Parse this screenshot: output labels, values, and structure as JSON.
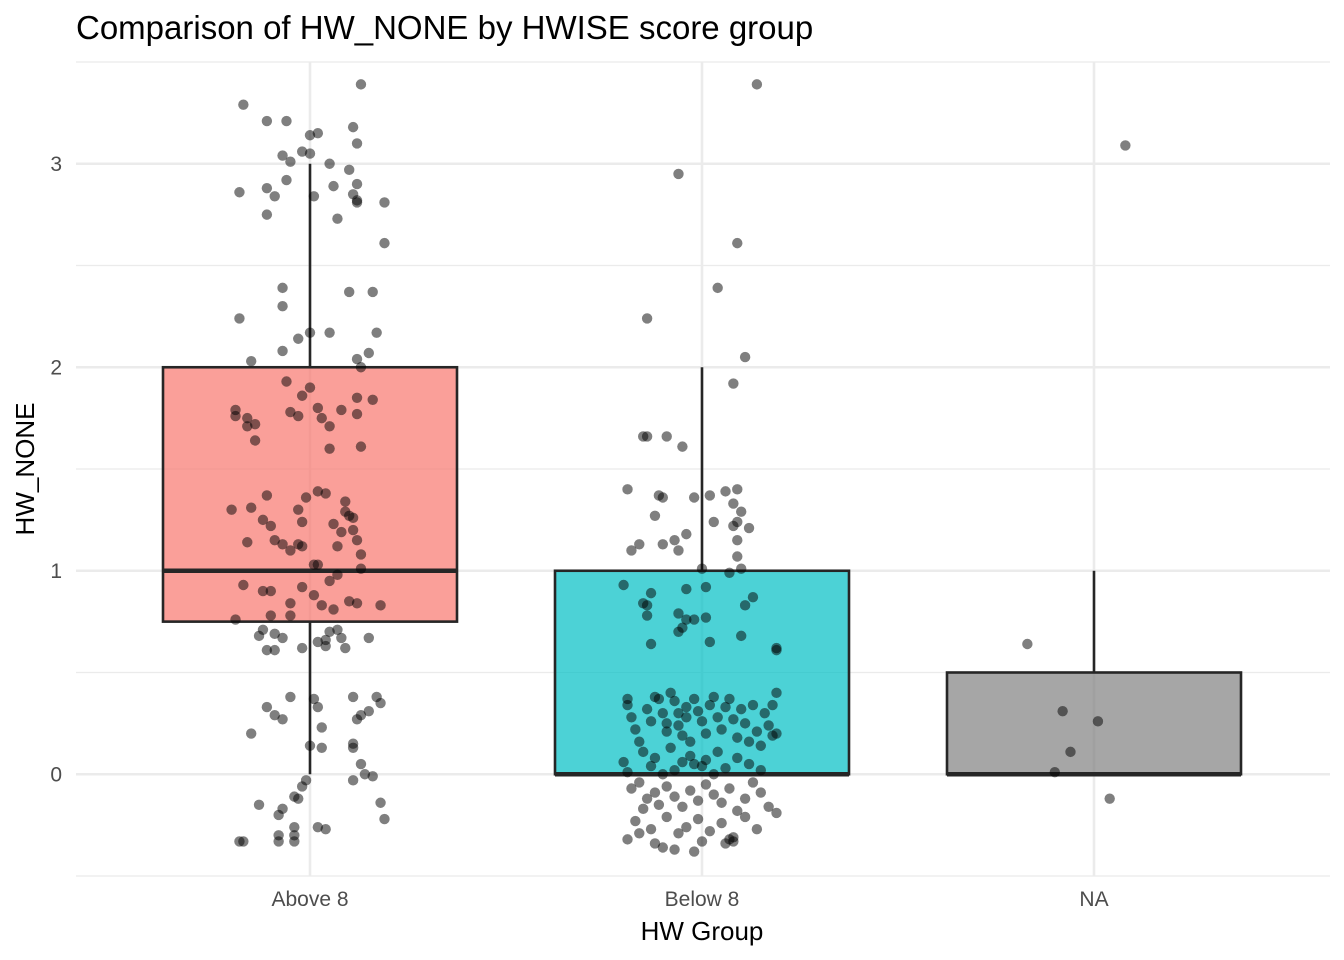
{
  "chart_data": {
    "type": "boxplot",
    "title": "Comparison of HW_NONE by HWISE score group",
    "xlabel": "HW Group",
    "ylabel": "HW_NONE",
    "ylim": [
      -0.5,
      3.5
    ],
    "yticks": [
      0,
      1,
      2,
      3
    ],
    "grid": true,
    "legend": "none",
    "categories": [
      "Above 8",
      "Below 8",
      "NA"
    ],
    "boxes": [
      {
        "category": "Above 8",
        "q1": 0.75,
        "median": 1,
        "q3": 2,
        "whisker_low": 0,
        "whisker_high": 3,
        "color": "#F8766D"
      },
      {
        "category": "Below 8",
        "q1": 0,
        "median": 0,
        "q3": 1,
        "whisker_low": 0,
        "whisker_high": 2,
        "color": "#00BFC4"
      },
      {
        "category": "NA",
        "q1": 0,
        "median": 0,
        "q3": 0.5,
        "whisker_low": 0,
        "whisker_high": 1,
        "color": "#808080"
      }
    ],
    "points": [
      [
        [
          -0.17,
          3.29
        ],
        [
          -0.11,
          3.21
        ],
        [
          -0.06,
          3.21
        ],
        [
          0.02,
          3.15
        ],
        [
          0.13,
          3.39
        ],
        [
          0.11,
          3.18
        ],
        [
          0.0,
          3.14
        ],
        [
          -0.07,
          3.04
        ],
        [
          -0.05,
          3.01
        ],
        [
          0.0,
          3.05
        ],
        [
          0.05,
          3.0
        ],
        [
          0.1,
          2.97
        ],
        [
          0.12,
          3.1
        ],
        [
          -0.18,
          2.86
        ],
        [
          -0.11,
          2.88
        ],
        [
          -0.06,
          2.92
        ],
        [
          -0.02,
          3.06
        ],
        [
          0.06,
          2.89
        ],
        [
          0.12,
          2.9
        ],
        [
          0.11,
          2.85
        ],
        [
          0.12,
          2.82
        ],
        [
          0.19,
          2.81
        ],
        [
          -0.09,
          2.84
        ],
        [
          -0.11,
          2.75
        ],
        [
          0.01,
          2.84
        ],
        [
          0.07,
          2.73
        ],
        [
          0.12,
          2.81
        ],
        [
          0.19,
          2.61
        ],
        [
          -0.07,
          2.39
        ],
        [
          -0.07,
          2.3
        ],
        [
          0.1,
          2.37
        ],
        [
          0.16,
          2.37
        ],
        [
          -0.18,
          2.24
        ],
        [
          0.0,
          2.17
        ],
        [
          0.05,
          2.17
        ],
        [
          -0.03,
          2.14
        ],
        [
          0.17,
          2.17
        ],
        [
          0.15,
          2.07
        ],
        [
          0.13,
          2.0
        ],
        [
          -0.15,
          2.03
        ],
        [
          -0.07,
          2.08
        ],
        [
          0.12,
          2.04
        ],
        [
          -0.06,
          1.93
        ],
        [
          0.0,
          1.9
        ],
        [
          -0.02,
          1.86
        ],
        [
          0.12,
          1.85
        ],
        [
          0.16,
          1.84
        ],
        [
          -0.19,
          1.79
        ],
        [
          -0.19,
          1.76
        ],
        [
          -0.16,
          1.75
        ],
        [
          -0.16,
          1.71
        ],
        [
          -0.14,
          1.72
        ],
        [
          -0.05,
          1.78
        ],
        [
          -0.03,
          1.76
        ],
        [
          0.02,
          1.8
        ],
        [
          0.03,
          1.75
        ],
        [
          0.05,
          1.71
        ],
        [
          0.08,
          1.79
        ],
        [
          0.12,
          1.77
        ],
        [
          -0.14,
          1.64
        ],
        [
          0.05,
          1.6
        ],
        [
          0.13,
          1.61
        ],
        [
          -0.2,
          1.3
        ],
        [
          -0.15,
          1.31
        ],
        [
          -0.11,
          1.37
        ],
        [
          -0.12,
          1.25
        ],
        [
          -0.1,
          1.22
        ],
        [
          -0.03,
          1.3
        ],
        [
          -0.02,
          1.24
        ],
        [
          -0.03,
          1.13
        ],
        [
          -0.05,
          1.1
        ],
        [
          -0.07,
          1.13
        ],
        [
          -0.16,
          1.14
        ],
        [
          -0.09,
          1.15
        ],
        [
          -0.01,
          1.36
        ],
        [
          0.02,
          1.39
        ],
        [
          0.04,
          1.38
        ],
        [
          0.09,
          1.34
        ],
        [
          0.09,
          1.29
        ],
        [
          0.1,
          1.27
        ],
        [
          0.11,
          1.26
        ],
        [
          0.06,
          1.23
        ],
        [
          0.08,
          1.19
        ],
        [
          0.12,
          1.15
        ],
        [
          0.13,
          1.08
        ],
        [
          0.07,
          1.12
        ],
        [
          0.11,
          1.2
        ],
        [
          -0.02,
          1.12
        ],
        [
          0.01,
          1.03
        ],
        [
          0.02,
          1.03
        ],
        [
          0.13,
          1.01
        ],
        [
          -0.17,
          0.93
        ],
        [
          -0.12,
          0.9
        ],
        [
          -0.1,
          0.9
        ],
        [
          -0.02,
          0.92
        ],
        [
          0.01,
          0.88
        ],
        [
          0.05,
          0.95
        ],
        [
          0.07,
          0.98
        ],
        [
          0.1,
          0.85
        ],
        [
          0.12,
          0.84
        ],
        [
          0.18,
          0.83
        ],
        [
          0.03,
          0.83
        ],
        [
          0.06,
          0.81
        ],
        [
          -0.05,
          0.84
        ],
        [
          -0.1,
          0.78
        ],
        [
          -0.05,
          0.78
        ],
        [
          -0.19,
          0.76
        ],
        [
          -0.12,
          0.71
        ],
        [
          -0.13,
          0.68
        ],
        [
          -0.09,
          0.69
        ],
        [
          -0.07,
          0.67
        ],
        [
          0.05,
          0.7
        ],
        [
          0.04,
          0.66
        ],
        [
          0.07,
          0.71
        ],
        [
          0.08,
          0.67
        ],
        [
          0.02,
          0.65
        ],
        [
          0.04,
          0.63
        ],
        [
          0.09,
          0.62
        ],
        [
          0.15,
          0.67
        ],
        [
          -0.11,
          0.61
        ],
        [
          -0.09,
          0.61
        ],
        [
          -0.02,
          0.62
        ],
        [
          -0.05,
          0.38
        ],
        [
          0.01,
          0.37
        ],
        [
          0.11,
          0.38
        ],
        [
          0.17,
          0.38
        ],
        [
          0.18,
          0.35
        ],
        [
          -0.11,
          0.33
        ],
        [
          -0.09,
          0.29
        ],
        [
          -0.07,
          0.27
        ],
        [
          0.02,
          0.33
        ],
        [
          0.13,
          0.29
        ],
        [
          0.12,
          0.27
        ],
        [
          0.15,
          0.31
        ],
        [
          0.03,
          0.23
        ],
        [
          -0.15,
          0.2
        ],
        [
          0.0,
          0.14
        ],
        [
          0.03,
          0.13
        ],
        [
          0.11,
          0.15
        ],
        [
          0.11,
          0.13
        ],
        [
          0.13,
          0.05
        ],
        [
          0.14,
          0.0
        ],
        [
          0.16,
          -0.01
        ],
        [
          0.11,
          -0.03
        ],
        [
          -0.01,
          -0.03
        ],
        [
          -0.02,
          -0.06
        ],
        [
          -0.03,
          -0.12
        ],
        [
          -0.04,
          -0.11
        ],
        [
          -0.07,
          -0.17
        ],
        [
          -0.08,
          -0.2
        ],
        [
          -0.13,
          -0.15
        ],
        [
          0.18,
          -0.14
        ],
        [
          0.19,
          -0.22
        ],
        [
          -0.04,
          -0.26
        ],
        [
          0.02,
          -0.26
        ],
        [
          0.04,
          -0.27
        ],
        [
          -0.04,
          -0.3
        ],
        [
          -0.08,
          -0.3
        ],
        [
          -0.17,
          -0.33
        ],
        [
          -0.18,
          -0.33
        ],
        [
          -0.08,
          -0.33
        ],
        [
          -0.04,
          -0.33
        ]
      ],
      [
        [
          0.14,
          3.39
        ],
        [
          -0.06,
          2.95
        ],
        [
          0.09,
          2.61
        ],
        [
          0.04,
          2.39
        ],
        [
          -0.14,
          2.24
        ],
        [
          0.11,
          2.05
        ],
        [
          0.08,
          1.92
        ],
        [
          -0.15,
          1.66
        ],
        [
          -0.14,
          1.66
        ],
        [
          -0.09,
          1.66
        ],
        [
          -0.05,
          1.61
        ],
        [
          -0.19,
          1.4
        ],
        [
          -0.11,
          1.37
        ],
        [
          -0.1,
          1.36
        ],
        [
          -0.02,
          1.36
        ],
        [
          0.02,
          1.37
        ],
        [
          0.06,
          1.39
        ],
        [
          0.09,
          1.4
        ],
        [
          0.08,
          1.33
        ],
        [
          0.1,
          1.29
        ],
        [
          0.12,
          1.21
        ],
        [
          0.09,
          1.24
        ],
        [
          0.08,
          1.22
        ],
        [
          -0.12,
          1.27
        ],
        [
          -0.07,
          1.15
        ],
        [
          -0.1,
          1.13
        ],
        [
          -0.16,
          1.13
        ],
        [
          -0.18,
          1.1
        ],
        [
          -0.06,
          1.1
        ],
        [
          -0.04,
          1.18
        ],
        [
          0.03,
          1.24
        ],
        [
          0.09,
          1.15
        ],
        [
          0.09,
          1.07
        ],
        [
          0.0,
          1.01
        ],
        [
          0.1,
          1.01
        ],
        [
          -0.2,
          0.93
        ],
        [
          -0.13,
          0.89
        ],
        [
          -0.15,
          0.84
        ],
        [
          -0.14,
          0.83
        ],
        [
          -0.04,
          0.91
        ],
        [
          0.01,
          0.92
        ],
        [
          0.07,
          0.99
        ],
        [
          0.13,
          0.87
        ],
        [
          0.11,
          0.83
        ],
        [
          -0.06,
          0.79
        ],
        [
          -0.04,
          0.76
        ],
        [
          -0.05,
          0.72
        ],
        [
          -0.14,
          0.78
        ],
        [
          -0.02,
          0.76
        ],
        [
          0.01,
          0.77
        ],
        [
          -0.06,
          0.7
        ],
        [
          -0.13,
          0.64
        ],
        [
          0.02,
          0.65
        ],
        [
          0.1,
          0.68
        ],
        [
          0.19,
          0.62
        ],
        [
          0.19,
          0.61
        ],
        [
          -0.19,
          0.37
        ],
        [
          -0.19,
          0.34
        ],
        [
          -0.18,
          0.28
        ],
        [
          -0.17,
          0.22
        ],
        [
          -0.16,
          0.16
        ],
        [
          -0.14,
          0.32
        ],
        [
          -0.13,
          0.26
        ],
        [
          -0.12,
          0.38
        ],
        [
          -0.11,
          0.37
        ],
        [
          -0.1,
          0.3
        ],
        [
          -0.09,
          0.25
        ],
        [
          -0.09,
          0.21
        ],
        [
          -0.08,
          0.4
        ],
        [
          -0.07,
          0.36
        ],
        [
          -0.06,
          0.3
        ],
        [
          -0.06,
          0.24
        ],
        [
          -0.05,
          0.19
        ],
        [
          -0.04,
          0.33
        ],
        [
          -0.04,
          0.28
        ],
        [
          -0.03,
          0.16
        ],
        [
          -0.02,
          0.37
        ],
        [
          -0.01,
          0.31
        ],
        [
          0.0,
          0.26
        ],
        [
          0.01,
          0.2
        ],
        [
          0.02,
          0.34
        ],
        [
          0.03,
          0.38
        ],
        [
          0.04,
          0.28
        ],
        [
          0.05,
          0.22
        ],
        [
          0.06,
          0.33
        ],
        [
          0.07,
          0.37
        ],
        [
          0.08,
          0.27
        ],
        [
          0.09,
          0.18
        ],
        [
          0.1,
          0.32
        ],
        [
          0.11,
          0.25
        ],
        [
          0.12,
          0.16
        ],
        [
          0.13,
          0.34
        ],
        [
          0.14,
          0.21
        ],
        [
          0.15,
          0.14
        ],
        [
          0.16,
          0.3
        ],
        [
          0.17,
          0.24
        ],
        [
          0.18,
          0.19
        ],
        [
          0.19,
          0.4
        ],
        [
          0.19,
          0.2
        ],
        [
          0.18,
          0.34
        ],
        [
          -0.15,
          0.11
        ],
        [
          -0.12,
          0.08
        ],
        [
          -0.08,
          0.13
        ],
        [
          -0.05,
          0.06
        ],
        [
          -0.03,
          0.09
        ],
        [
          -0.02,
          0.05
        ],
        [
          0.01,
          0.07
        ],
        [
          0.04,
          0.11
        ],
        [
          0.06,
          0.03
        ],
        [
          0.09,
          0.08
        ],
        [
          0.12,
          0.05
        ],
        [
          0.15,
          0.02
        ],
        [
          -0.2,
          0.06
        ],
        [
          -0.19,
          0.01
        ],
        [
          -0.13,
          0.04
        ],
        [
          -0.1,
          0.0
        ],
        [
          -0.07,
          0.02
        ],
        [
          0.0,
          0.04
        ],
        [
          0.03,
          0.0
        ],
        [
          -0.18,
          -0.07
        ],
        [
          -0.16,
          -0.04
        ],
        [
          -0.14,
          -0.12
        ],
        [
          -0.12,
          -0.09
        ],
        [
          -0.11,
          -0.15
        ],
        [
          -0.09,
          -0.06
        ],
        [
          -0.07,
          -0.11
        ],
        [
          -0.05,
          -0.16
        ],
        [
          -0.03,
          -0.08
        ],
        [
          -0.01,
          -0.13
        ],
        [
          0.01,
          -0.05
        ],
        [
          0.03,
          -0.1
        ],
        [
          0.05,
          -0.14
        ],
        [
          0.07,
          -0.07
        ],
        [
          0.09,
          -0.18
        ],
        [
          0.11,
          -0.12
        ],
        [
          0.13,
          -0.04
        ],
        [
          0.15,
          -0.09
        ],
        [
          0.17,
          -0.16
        ],
        [
          0.19,
          -0.19
        ],
        [
          -0.17,
          -0.23
        ],
        [
          -0.15,
          -0.17
        ],
        [
          -0.13,
          -0.27
        ],
        [
          -0.09,
          -0.21
        ],
        [
          -0.06,
          -0.29
        ],
        [
          -0.04,
          -0.26
        ],
        [
          -0.01,
          -0.22
        ],
        [
          0.02,
          -0.28
        ],
        [
          0.05,
          -0.24
        ],
        [
          0.08,
          -0.31
        ],
        [
          0.11,
          -0.21
        ],
        [
          0.14,
          -0.27
        ],
        [
          -0.19,
          -0.32
        ],
        [
          -0.16,
          -0.29
        ],
        [
          -0.12,
          -0.34
        ],
        [
          -0.1,
          -0.36
        ],
        [
          -0.07,
          -0.37
        ],
        [
          -0.02,
          -0.38
        ],
        [
          0.0,
          -0.33
        ],
        [
          0.06,
          -0.34
        ],
        [
          0.07,
          -0.32
        ],
        [
          0.08,
          -0.33
        ]
      ],
      [
        [
          0.08,
          3.09
        ],
        [
          -0.17,
          0.64
        ],
        [
          -0.08,
          0.31
        ],
        [
          0.01,
          0.26
        ],
        [
          -0.06,
          0.11
        ],
        [
          -0.1,
          0.01
        ],
        [
          0.04,
          -0.12
        ]
      ]
    ]
  }
}
